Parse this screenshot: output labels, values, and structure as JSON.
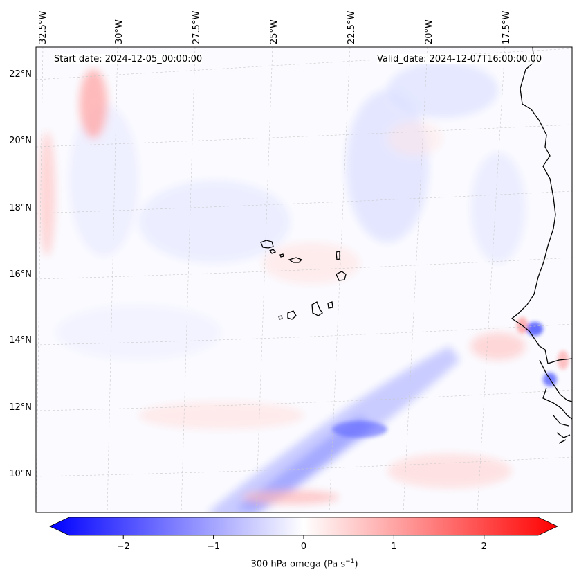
{
  "header": {
    "start_date": "Start date: 2024-12-05_00:00:00",
    "valid_date": "Valid_date: 2024-12-07T16:00:00.00"
  },
  "lon_labels": [
    "32.5°W",
    "30°W",
    "27.5°W",
    "25°W",
    "22.5°W",
    "20°W",
    "17.5°W"
  ],
  "lat_labels": [
    "22°N",
    "20°N",
    "18°N",
    "16°N",
    "14°N",
    "12°N",
    "10°N"
  ],
  "colorbar": {
    "ticks": [
      "−2",
      "−1",
      "0",
      "1",
      "2"
    ],
    "tick_values": [
      -2,
      -1,
      0,
      1,
      2
    ],
    "range": [
      -2.6,
      2.6
    ],
    "label_prefix": "300 hPa omega (Pa s",
    "label_exponent": "−1",
    "label_suffix": ")",
    "cmap": "bwr",
    "colors": {
      "negative": "#0000ff",
      "zero": "#ffffff",
      "positive": "#ff0000"
    }
  },
  "map": {
    "projection": "Lambert-like conic",
    "lon_range": [
      -33,
      -16
    ],
    "lat_range": [
      9,
      23
    ],
    "gridlines": true,
    "coastline_color": "#000000",
    "features": [
      "Cape Verde islands",
      "West African coast"
    ]
  }
}
